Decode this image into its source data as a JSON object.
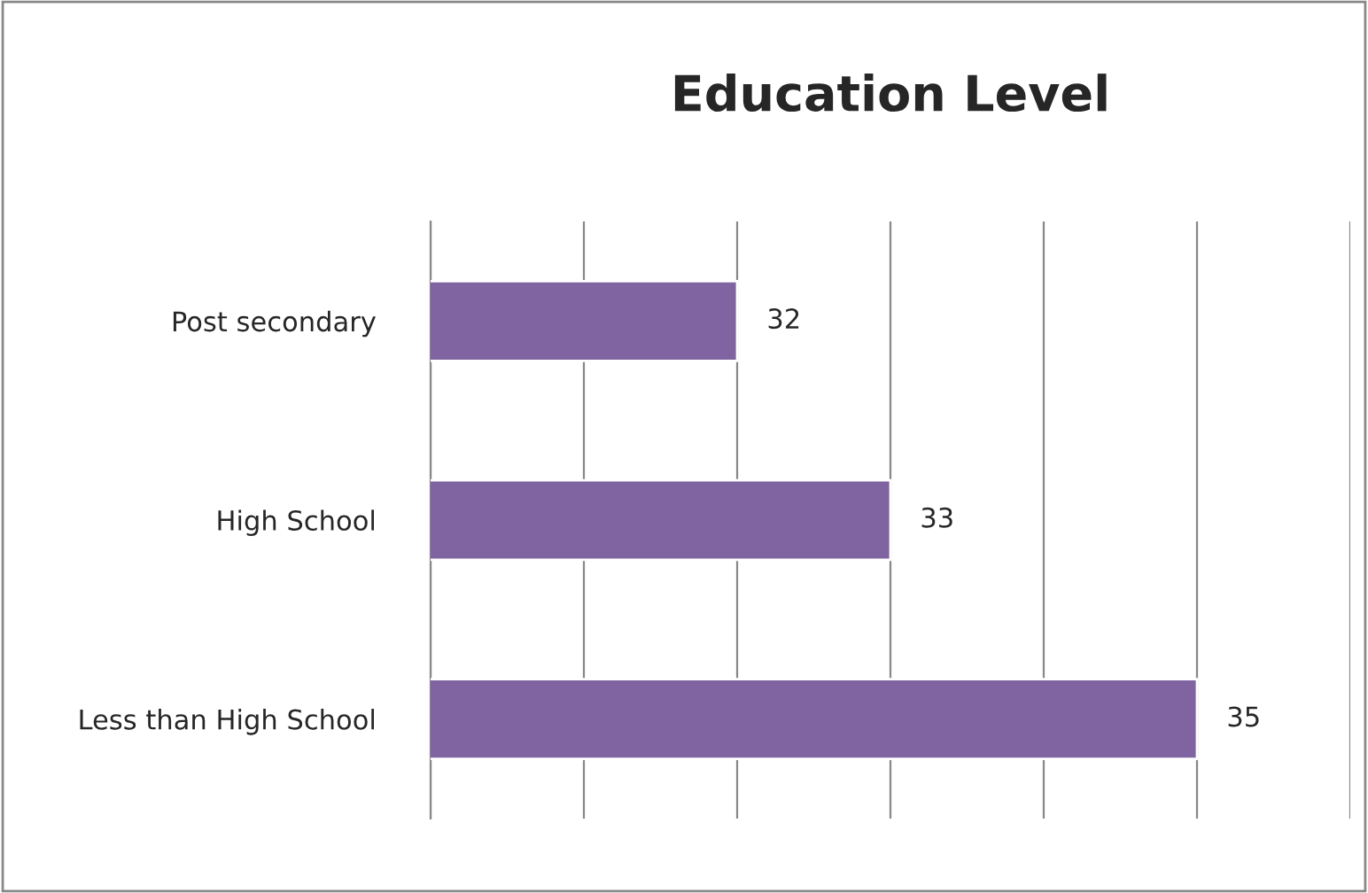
{
  "chart_data": {
    "type": "bar",
    "orientation": "horizontal",
    "title": "Education Level",
    "categories": [
      "Post secondary",
      "High School",
      "Less than High School"
    ],
    "values": [
      32,
      33,
      35
    ],
    "color": "#8064a2",
    "data_labels": true,
    "xlim": [
      30,
      36
    ],
    "xticks": [
      {
        "value": 30,
        "label": null
      },
      {
        "value": 31,
        "label": null
      },
      {
        "value": 32,
        "label": null
      },
      {
        "value": 33,
        "label": null
      },
      {
        "value": 34,
        "label": null
      },
      {
        "value": 35,
        "label": null
      },
      {
        "value": 36,
        "label": null
      }
    ],
    "grid": "x",
    "tick_labels": "y"
  }
}
